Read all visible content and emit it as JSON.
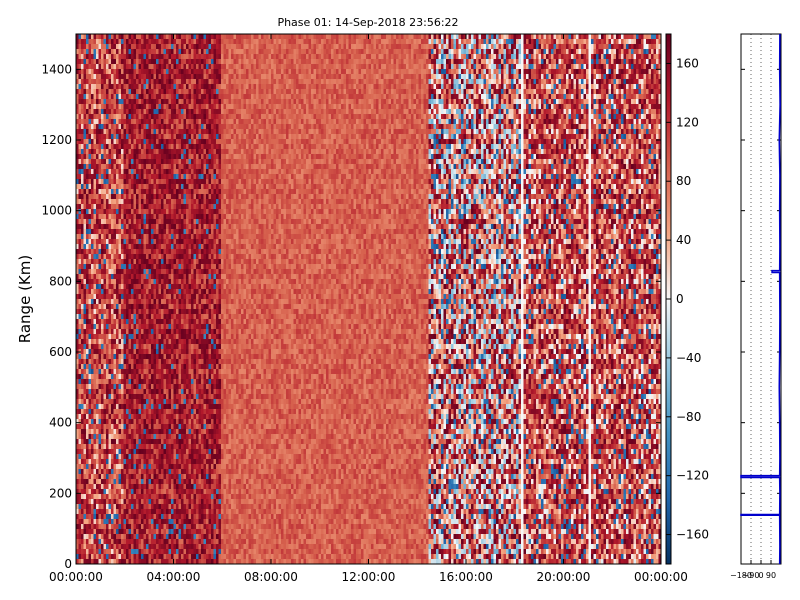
{
  "chart_data": [
    {
      "type": "heatmap",
      "title": "Phase 01: 14-Sep-2018 23:56:22",
      "xlabel": "",
      "ylabel": "Range (Km)",
      "x_ticks": [
        "00:00:00",
        "04:00:00",
        "08:00:00",
        "12:00:00",
        "16:00:00",
        "20:00:00",
        "00:00:00"
      ],
      "x_range_hours": [
        0,
        24
      ],
      "y_ticks": [
        0,
        200,
        400,
        600,
        800,
        1000,
        1200,
        1400
      ],
      "ylim": [
        0,
        1500
      ],
      "colorbar": {
        "range": [
          -180,
          180
        ],
        "ticks": [
          -160,
          -120,
          -80,
          -40,
          0,
          40,
          80,
          120,
          160
        ],
        "colormap": "RdBu_r",
        "color_low": "#053061",
        "color_mid": "#f7f7f7",
        "color_high": "#67001f"
      },
      "description_profile": {
        "segments_hours": [
          {
            "start": 0,
            "end": 2,
            "mean_phase": 150,
            "noise": "high"
          },
          {
            "start": 2,
            "end": 6,
            "mean_phase": 150,
            "noise": "medium"
          },
          {
            "start": 6,
            "end": 14.5,
            "mean_phase": 90,
            "noise": "low"
          },
          {
            "start": 14.5,
            "end": 18.3,
            "mean_phase": 70,
            "noise": "high"
          },
          {
            "start": 18.3,
            "end": 24,
            "mean_phase": 130,
            "noise": "high"
          }
        ],
        "white_columns_hours": [
          18.3,
          21.1
        ]
      }
    },
    {
      "type": "line",
      "title": "",
      "xlabel": "",
      "ylabel": "",
      "x_ticks": [
        "−180",
        "−90",
        "0",
        "90"
      ],
      "xlim": [
        -180,
        180
      ],
      "ylim": [
        0,
        1500
      ],
      "y_ticks": [
        0,
        200,
        400,
        600,
        800,
        1000,
        1200,
        1400
      ],
      "grid": true,
      "series": [
        {
          "color": "#0000cc",
          "points": [
            [
              170,
              1500
            ],
            [
              168,
              1400
            ],
            [
              172,
              1300
            ],
            [
              165,
              1200
            ],
            [
              170,
              1100
            ],
            [
              168,
              1000
            ],
            [
              170,
              900
            ],
            [
              168,
              830
            ],
            [
              100,
              830
            ],
            [
              100,
              825
            ],
            [
              168,
              825
            ],
            [
              170,
              700
            ],
            [
              168,
              600
            ],
            [
              165,
              500
            ],
            [
              168,
              400
            ],
            [
              170,
              300
            ],
            [
              168,
              250
            ],
            [
              -180,
              250
            ],
            [
              -180,
              245
            ],
            [
              168,
              245
            ],
            [
              170,
              200
            ],
            [
              168,
              140
            ],
            [
              -180,
              140
            ],
            [
              -180,
              138
            ],
            [
              168,
              138
            ],
            [
              170,
              50
            ],
            [
              168,
              0
            ]
          ]
        }
      ]
    }
  ]
}
